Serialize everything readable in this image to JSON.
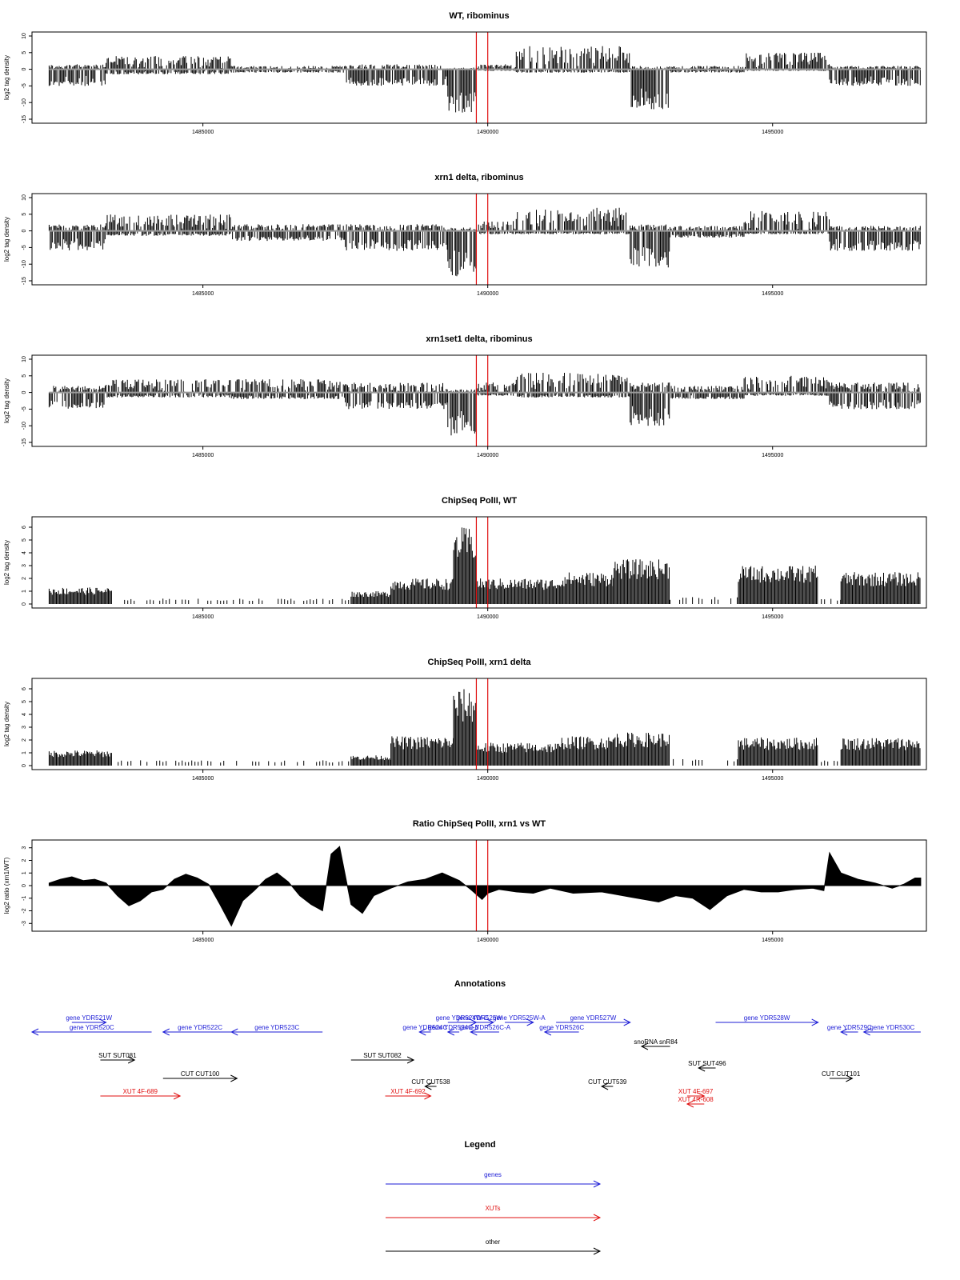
{
  "colors": {
    "gene": "#1c1cd6",
    "xut": "#e01010",
    "other": "#000000",
    "marker": "#e01010",
    "baseline": "#9a9a9a",
    "signal": "#000000"
  },
  "x_range": [
    1482000,
    1497700
  ],
  "x_ticks": [
    1485000,
    1490000,
    1495000
  ],
  "markers": [
    1489800,
    1490000
  ],
  "chart_data": [
    {
      "type": "bar",
      "title": "WT, ribominus",
      "ylabel": "log2 tag density",
      "ylim": [
        -15,
        10
      ],
      "yticks": [
        10,
        5,
        0,
        -5,
        -10,
        -15
      ],
      "segments": [
        {
          "x": [
            1482300,
            1483300
          ],
          "pos": 1.5,
          "neg": 5
        },
        {
          "x": [
            1483300,
            1485500
          ],
          "pos": 4,
          "neg": 1.5
        },
        {
          "x": [
            1485500,
            1487500
          ],
          "pos": 1,
          "neg": 1
        },
        {
          "x": [
            1487500,
            1489300
          ],
          "pos": 1.5,
          "neg": 5
        },
        {
          "x": [
            1489300,
            1489800
          ],
          "pos": 0.5,
          "neg": 13
        },
        {
          "x": [
            1489800,
            1490500
          ],
          "pos": 1.5,
          "neg": 0.5
        },
        {
          "x": [
            1490500,
            1492500
          ],
          "pos": 7,
          "neg": 1
        },
        {
          "x": [
            1492500,
            1493200
          ],
          "pos": 1,
          "neg": 12
        },
        {
          "x": [
            1493200,
            1494500
          ],
          "pos": 1,
          "neg": 1
        },
        {
          "x": [
            1494500,
            1496000
          ],
          "pos": 5,
          "neg": 0.5
        },
        {
          "x": [
            1496000,
            1497600
          ],
          "pos": 1,
          "neg": 5
        }
      ]
    },
    {
      "type": "bar",
      "title": "xrn1 delta, ribominus",
      "ylabel": "log2 tag density",
      "ylim": [
        -15,
        10
      ],
      "yticks": [
        10,
        5,
        0,
        -5,
        -10,
        -15
      ],
      "segments": [
        {
          "x": [
            1482300,
            1483300
          ],
          "pos": 2,
          "neg": 6
        },
        {
          "x": [
            1483300,
            1485500
          ],
          "pos": 5,
          "neg": 1.5
        },
        {
          "x": [
            1485500,
            1487500
          ],
          "pos": 2,
          "neg": 3
        },
        {
          "x": [
            1487500,
            1489300
          ],
          "pos": 2,
          "neg": 6
        },
        {
          "x": [
            1489300,
            1489800
          ],
          "pos": 1,
          "neg": 14
        },
        {
          "x": [
            1489800,
            1490500
          ],
          "pos": 3,
          "neg": 1
        },
        {
          "x": [
            1490500,
            1492500
          ],
          "pos": 7,
          "neg": 1
        },
        {
          "x": [
            1492500,
            1493200
          ],
          "pos": 2,
          "neg": 11
        },
        {
          "x": [
            1493200,
            1494500
          ],
          "pos": 1.5,
          "neg": 2
        },
        {
          "x": [
            1494500,
            1496000
          ],
          "pos": 6,
          "neg": 1
        },
        {
          "x": [
            1496000,
            1497600
          ],
          "pos": 1.5,
          "neg": 6
        }
      ]
    },
    {
      "type": "bar",
      "title": "xrn1set1 delta, ribominus",
      "ylabel": "log2 tag density",
      "ylim": [
        -15,
        10
      ],
      "yticks": [
        10,
        5,
        0,
        -5,
        -10,
        -15
      ],
      "segments": [
        {
          "x": [
            1482300,
            1483300
          ],
          "pos": 2,
          "neg": 5
        },
        {
          "x": [
            1483300,
            1485500
          ],
          "pos": 4,
          "neg": 1.5
        },
        {
          "x": [
            1485500,
            1487500
          ],
          "pos": 4,
          "neg": 2
        },
        {
          "x": [
            1487500,
            1489300
          ],
          "pos": 3,
          "neg": 5
        },
        {
          "x": [
            1489300,
            1489800
          ],
          "pos": 1,
          "neg": 13
        },
        {
          "x": [
            1489800,
            1490500
          ],
          "pos": 3,
          "neg": 1
        },
        {
          "x": [
            1490500,
            1492500
          ],
          "pos": 6,
          "neg": 1.5
        },
        {
          "x": [
            1492500,
            1493200
          ],
          "pos": 3,
          "neg": 10
        },
        {
          "x": [
            1493200,
            1494500
          ],
          "pos": 2,
          "neg": 2
        },
        {
          "x": [
            1494500,
            1496000
          ],
          "pos": 5,
          "neg": 1
        },
        {
          "x": [
            1496000,
            1497600
          ],
          "pos": 3,
          "neg": 5
        }
      ]
    },
    {
      "type": "bar",
      "title": "ChipSeq PolII, WT",
      "ylabel": "log2 tag density",
      "ylim": [
        0,
        6.5
      ],
      "yticks": [
        0,
        1,
        2,
        3,
        4,
        5,
        6
      ],
      "segments": [
        {
          "x": [
            1482300,
            1483400
          ],
          "level": 1.3
        },
        {
          "x": [
            1483400,
            1487600
          ],
          "level": 0.3
        },
        {
          "x": [
            1487600,
            1488300
          ],
          "level": 1.0
        },
        {
          "x": [
            1488300,
            1489400
          ],
          "level": 2.0
        },
        {
          "x": [
            1489400,
            1489800
          ],
          "level": 6.0
        },
        {
          "x": [
            1489800,
            1491300
          ],
          "level": 2.0
        },
        {
          "x": [
            1491300,
            1492200
          ],
          "level": 2.5
        },
        {
          "x": [
            1492200,
            1493200
          ],
          "level": 3.5
        },
        {
          "x": [
            1493200,
            1494400
          ],
          "level": 0.4
        },
        {
          "x": [
            1494400,
            1495800
          ],
          "level": 3.0
        },
        {
          "x": [
            1495800,
            1496200
          ],
          "level": 0.3
        },
        {
          "x": [
            1496200,
            1497600
          ],
          "level": 2.5
        }
      ]
    },
    {
      "type": "bar",
      "title": "ChipSeq PolII, xrn1 delta",
      "ylabel": "log2 tag density",
      "ylim": [
        0,
        6.5
      ],
      "yticks": [
        0,
        1,
        2,
        3,
        4,
        5,
        6
      ],
      "segments": [
        {
          "x": [
            1482300,
            1483400
          ],
          "level": 1.2
        },
        {
          "x": [
            1483400,
            1487600
          ],
          "level": 0.3
        },
        {
          "x": [
            1487600,
            1488300
          ],
          "level": 0.8
        },
        {
          "x": [
            1488300,
            1489400
          ],
          "level": 2.3
        },
        {
          "x": [
            1489400,
            1489800
          ],
          "level": 6.0
        },
        {
          "x": [
            1489800,
            1491300
          ],
          "level": 1.8
        },
        {
          "x": [
            1491300,
            1492200
          ],
          "level": 2.3
        },
        {
          "x": [
            1492200,
            1493200
          ],
          "level": 2.6
        },
        {
          "x": [
            1493200,
            1494400
          ],
          "level": 0.4
        },
        {
          "x": [
            1494400,
            1495800
          ],
          "level": 2.2
        },
        {
          "x": [
            1495800,
            1496200
          ],
          "level": 0.3
        },
        {
          "x": [
            1496200,
            1497600
          ],
          "level": 2.2
        }
      ]
    },
    {
      "type": "area",
      "title": "Ratio ChipSeq PolII, xrn1 vs WT",
      "ylabel": "log2 ratio (xrn1/WT)",
      "ylim": [
        -3.3,
        3.3
      ],
      "yticks": [
        3,
        2,
        1,
        0,
        -1,
        -2,
        -3
      ],
      "x": [
        1482300,
        1482500,
        1482700,
        1482900,
        1483100,
        1483300,
        1483500,
        1483700,
        1483900,
        1484100,
        1484300,
        1484500,
        1484700,
        1484900,
        1485100,
        1485300,
        1485500,
        1485700,
        1485900,
        1486100,
        1486300,
        1486500,
        1486700,
        1486900,
        1487100,
        1487250,
        1487400,
        1487600,
        1487800,
        1488000,
        1488300,
        1488600,
        1488900,
        1489200,
        1489500,
        1489700,
        1489900,
        1490000,
        1490200,
        1490500,
        1490800,
        1491100,
        1491500,
        1492000,
        1492500,
        1493000,
        1493300,
        1493600,
        1493900,
        1494200,
        1494500,
        1494800,
        1495100,
        1495400,
        1495700,
        1495900,
        1496000,
        1496200,
        1496500,
        1496800,
        1497100,
        1497300,
        1497500,
        1497600
      ],
      "y": [
        0.2,
        0.5,
        0.7,
        0.4,
        0.5,
        0.2,
        -0.8,
        -1.6,
        -1.2,
        -0.5,
        -0.3,
        0.5,
        0.9,
        0.6,
        0.1,
        -1.5,
        -3.2,
        -1.2,
        -0.4,
        0.5,
        1.0,
        0.3,
        -0.8,
        -1.5,
        -2.0,
        2.5,
        3.1,
        -1.5,
        -2.2,
        -0.8,
        -0.2,
        0.3,
        0.5,
        1.0,
        0.4,
        -0.3,
        -1.1,
        -0.6,
        -0.3,
        -0.5,
        -0.6,
        -0.2,
        -0.6,
        -0.5,
        -0.9,
        -1.3,
        -0.8,
        -1.0,
        -1.9,
        -0.8,
        -0.3,
        -0.5,
        -0.5,
        -0.3,
        -0.2,
        -0.4,
        2.6,
        1.0,
        0.5,
        0.2,
        -0.2,
        0.1,
        0.6,
        0.6
      ]
    }
  ],
  "annotations": {
    "title": "Annotations",
    "items": [
      {
        "label": "gene YDR520C",
        "cat": "gene",
        "x1": 1482000,
        "x2": 1484100,
        "row": 1,
        "dir": "left"
      },
      {
        "label": "gene YDR521W",
        "cat": "gene",
        "x1": 1482700,
        "x2": 1483300,
        "row": 0,
        "dir": "right"
      },
      {
        "label": "gene YDR522C",
        "cat": "gene",
        "x1": 1484300,
        "x2": 1485600,
        "row": 1,
        "dir": "left"
      },
      {
        "label": "gene YDR523C",
        "cat": "gene",
        "x1": 1485500,
        "x2": 1487100,
        "row": 1,
        "dir": "left"
      },
      {
        "label": "gene YDR524C",
        "cat": "gene",
        "x1": 1488800,
        "x2": 1489000,
        "row": 1,
        "dir": "left"
      },
      {
        "label": "gene YDR524W-C",
        "cat": "gene",
        "x1": 1489300,
        "x2": 1489800,
        "row": 0,
        "dir": "right"
      },
      {
        "label": "gene YDR525W",
        "cat": "gene",
        "x1": 1489600,
        "x2": 1490100,
        "row": 0,
        "dir": "right"
      },
      {
        "label": "gene YDR524C-B",
        "cat": "gene",
        "x1": 1489300,
        "x2": 1489500,
        "row": 1,
        "dir": "left"
      },
      {
        "label": "gene YDR526C-A",
        "cat": "gene",
        "x1": 1489700,
        "x2": 1490200,
        "row": 1,
        "dir": "left"
      },
      {
        "label": "gene YDR525W-A",
        "cat": "gene",
        "x1": 1490300,
        "x2": 1490800,
        "row": 0,
        "dir": "right"
      },
      {
        "label": "gene YDR527W",
        "cat": "gene",
        "x1": 1491200,
        "x2": 1492500,
        "row": 0,
        "dir": "right"
      },
      {
        "label": "gene YDR526C",
        "cat": "gene",
        "x1": 1491000,
        "x2": 1491600,
        "row": 1,
        "dir": "left"
      },
      {
        "label": "gene YDR528W",
        "cat": "gene",
        "x1": 1494000,
        "x2": 1495800,
        "row": 0,
        "dir": "right"
      },
      {
        "label": "gene YDR529C",
        "cat": "gene",
        "x1": 1496200,
        "x2": 1496500,
        "row": 1,
        "dir": "left"
      },
      {
        "label": "gene YDR530C",
        "cat": "gene",
        "x1": 1496600,
        "x2": 1497600,
        "row": 1,
        "dir": "left"
      },
      {
        "label": "snoRNA snR84",
        "cat": "other",
        "x1": 1492700,
        "x2": 1493200,
        "row": 2,
        "dir": "left"
      },
      {
        "label": "SUT SUT081",
        "cat": "other",
        "x1": 1483200,
        "x2": 1483800,
        "row": 3,
        "dir": "right"
      },
      {
        "label": "SUT SUT082",
        "cat": "other",
        "x1": 1487600,
        "x2": 1488700,
        "row": 3,
        "dir": "right"
      },
      {
        "label": "SUT SUT496",
        "cat": "other",
        "x1": 1493700,
        "x2": 1494000,
        "row": 4,
        "dir": "left"
      },
      {
        "label": "CUT CUT100",
        "cat": "other",
        "x1": 1484300,
        "x2": 1485600,
        "row": 5,
        "dir": "right"
      },
      {
        "label": "CUT CUT101",
        "cat": "other",
        "x1": 1496000,
        "x2": 1496400,
        "row": 5,
        "dir": "right"
      },
      {
        "label": "CUT CUT538",
        "cat": "other",
        "x1": 1488900,
        "x2": 1489100,
        "row": 6,
        "dir": "left"
      },
      {
        "label": "CUT CUT539",
        "cat": "other",
        "x1": 1492000,
        "x2": 1492200,
        "row": 6,
        "dir": "left"
      },
      {
        "label": "XUT 4F-689",
        "cat": "xut",
        "x1": 1483200,
        "x2": 1484600,
        "row": 7,
        "dir": "right"
      },
      {
        "label": "XUT 4F-692",
        "cat": "xut",
        "x1": 1488200,
        "x2": 1489000,
        "row": 7,
        "dir": "right"
      },
      {
        "label": "XUT 4F-697",
        "cat": "xut",
        "x1": 1493500,
        "x2": 1493800,
        "row": 7,
        "dir": "right"
      },
      {
        "label": "XUT 4R-608",
        "cat": "xut",
        "x1": 1493500,
        "x2": 1493800,
        "row": 8,
        "dir": "left"
      }
    ]
  },
  "legend": {
    "title": "Legend",
    "items": [
      {
        "label": "genes",
        "cat": "gene"
      },
      {
        "label": "XUTs",
        "cat": "xut"
      },
      {
        "label": "other",
        "cat": "other"
      }
    ]
  }
}
